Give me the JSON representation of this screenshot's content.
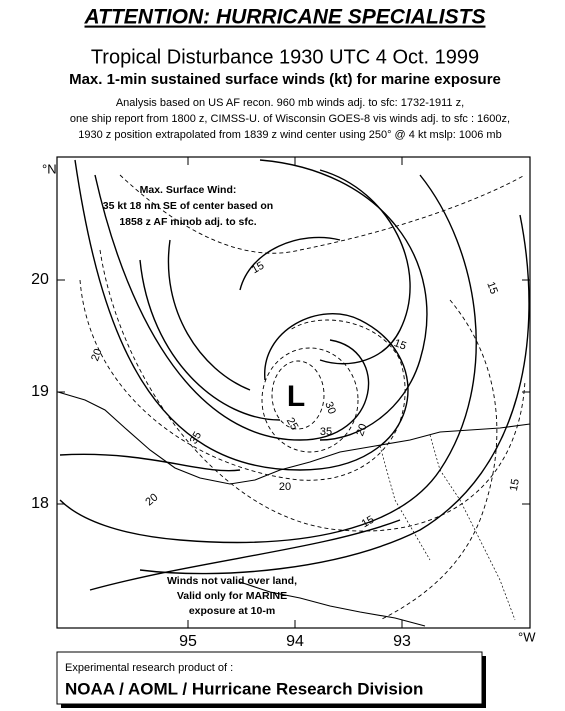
{
  "header": {
    "title": "ATTENTION: HURRICANE SPECIALISTS",
    "subtitle": "Tropical Disturbance 1930 UTC 4 Oct. 1999",
    "heading": "Max. 1-min sustained surface winds (kt) for marine exposure",
    "notes": [
      "Analysis based on US AF recon. 960 mb winds adj. to sfc:  1732-1911 z,",
      "one ship report from 1800 z, CIMSS-U. of Wisconsin GOES-8 vis winds adj. to sfc : 1600z,",
      "1930 z position extrapolated from 1839 z wind center using  250° @ 4 kt  mslp: 1006 mb"
    ]
  },
  "map": {
    "lat_unit": "°N",
    "lon_unit": "°W",
    "lat_ticks": [
      20,
      19,
      18
    ],
    "lon_ticks": [
      95,
      94,
      93
    ],
    "center_label": "L",
    "max_wind_box": [
      "Max. Surface Wind:",
      "35 kt 18 nm SE of center based on",
      "1858 z AF minob adj. to sfc."
    ],
    "land_note": [
      "Winds not valid over land,",
      "Valid only for MARINE",
      "exposure at 10-m"
    ],
    "contour_labels": [
      "15",
      "15",
      "15",
      "15",
      "15",
      "20",
      "20",
      "20",
      "20",
      "25",
      "35",
      "35",
      "30"
    ]
  },
  "footer": {
    "line1": "Experimental research product of :",
    "line2": "NOAA / AOML / Hurricane Research Division"
  }
}
